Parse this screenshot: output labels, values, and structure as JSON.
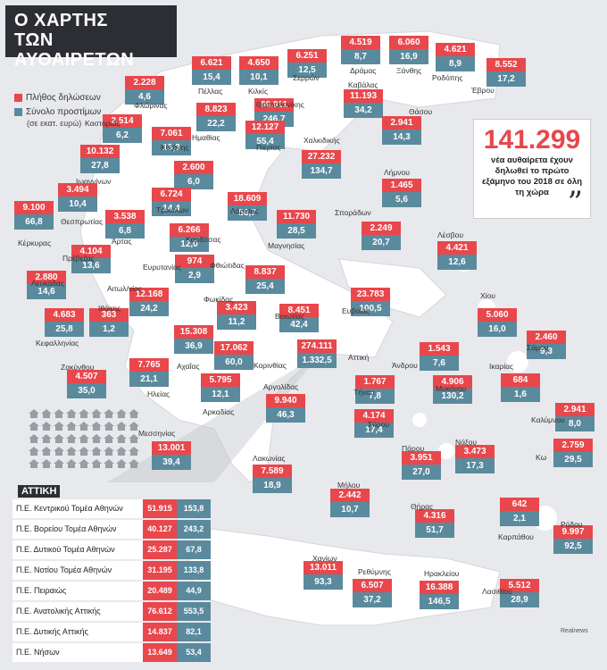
{
  "title": {
    "line1": "Ο ΧΑΡΤΗΣ",
    "line2": "ΤΩΝ ΑΥΘΑΙΡΕΤΩΝ"
  },
  "legend": {
    "red_label": "Πλήθος δηλώσεων",
    "teal_label": "Σύνολο προστίμων",
    "teal_sub": "(σε εκατ. ευρώ)"
  },
  "colors": {
    "red": "#e8474c",
    "teal": "#5a8a9d",
    "dark": "#2c2e33"
  },
  "headline": {
    "number": "141.299",
    "text": "νέα αυθαίρετα έχουν δηλωθεί το πρώτο εξάμηνο του 2018 σε όλη τη χώρα",
    "quote": "”"
  },
  "regions": [
    {
      "name": "Πέλλας",
      "a": "6.621",
      "b": "15,4"
    },
    {
      "name": "Κιλκίς",
      "a": "4.650",
      "b": "10,1"
    },
    {
      "name": "Σερρών",
      "a": "6.251",
      "b": "12,5"
    },
    {
      "name": "Δράμας",
      "a": "4.519",
      "b": "8,7"
    },
    {
      "name": "Ξάνθης",
      "a": "6.060",
      "b": "16,9"
    },
    {
      "name": "Ροδόπης",
      "a": "4.621",
      "b": "8,9"
    },
    {
      "name": "Έβρου",
      "a": "8.552",
      "b": "17,2"
    },
    {
      "name": "Φλώρινας",
      "a": "2.228",
      "b": "4,6"
    },
    {
      "name": "Καβάλας",
      "a": "11.193",
      "b": "34,2"
    },
    {
      "name": "Καστοριάς",
      "a": "2.514",
      "b": "6,2"
    },
    {
      "name": "Ημαθίας",
      "a": "8.823",
      "b": "22,2"
    },
    {
      "name": "Θεσσαλονίκης",
      "a": "66.911",
      "b": "246,7"
    },
    {
      "name": "Θάσου",
      "a": "2.941",
      "b": "14,3"
    },
    {
      "name": "Κοζάνης",
      "a": "7.061",
      "b": "13,3"
    },
    {
      "name": "Πιερίας",
      "a": "12.127",
      "b": "55,4"
    },
    {
      "name": "Χαλκιδικής",
      "a": "27.232",
      "b": "134,7"
    },
    {
      "name": "Ιωαννίνων",
      "a": "10.132",
      "b": "27,8"
    },
    {
      "name": "Γρεβενών",
      "a": "2.600",
      "b": "6,0"
    },
    {
      "name": "Λήμνου",
      "a": "1.465",
      "b": "5,6"
    },
    {
      "name": "Θεσπρωτίας",
      "a": "3.494",
      "b": "10,4"
    },
    {
      "name": "Τρικάλων",
      "a": "6.724",
      "b": "14,4"
    },
    {
      "name": "Λάρισας",
      "a": "18.609",
      "b": "56,7"
    },
    {
      "name": "Κέρκυρας",
      "a": "9.100",
      "b": "66,8"
    },
    {
      "name": "Άρτας",
      "a": "3.538",
      "b": "6,8"
    },
    {
      "name": "Καρδίτσας",
      "a": "6.266",
      "b": "12,0"
    },
    {
      "name": "Μαγνησίας",
      "a": "11.730",
      "b": "28,5"
    },
    {
      "name": "Σποράδων",
      "a": "2.249",
      "b": "20,7"
    },
    {
      "name": "Λέσβου",
      "a": "4.421",
      "b": "12,6"
    },
    {
      "name": "Πρέβεζας",
      "a": "4.104",
      "b": "13,6"
    },
    {
      "name": "Ευρυτανίας",
      "a": "974",
      "b": "2,9"
    },
    {
      "name": "Φθιώτιδας",
      "a": "8.837",
      "b": "25,4"
    },
    {
      "name": "Λευκάδας",
      "a": "2.880",
      "b": "14,6"
    },
    {
      "name": "Αιτωλ/νίας",
      "a": "12.168",
      "b": "24,2"
    },
    {
      "name": "Ευβοίας",
      "a": "23.783",
      "b": "100,5"
    },
    {
      "name": "Κεφαλληνίας",
      "a": "4.683",
      "b": "25,8"
    },
    {
      "name": "Ιθάκης",
      "a": "363",
      "b": "1,2"
    },
    {
      "name": "Φωκίδας",
      "a": "3.423",
      "b": "11,2"
    },
    {
      "name": "Βοιωτίας",
      "a": "8.451",
      "b": "42,4"
    },
    {
      "name": "Χίου",
      "a": "5.060",
      "b": "16,0"
    },
    {
      "name": "Αχαΐας",
      "a": "15.308",
      "b": "36,9"
    },
    {
      "name": "Σάμου",
      "a": "2.460",
      "b": "9,3"
    },
    {
      "name": "Ζακύνθου",
      "a": "4.507",
      "b": "35,0"
    },
    {
      "name": "Κορινθίας",
      "a": "17.062",
      "b": "60,0"
    },
    {
      "name": "Αττική",
      "a": "274.111",
      "b": "1.332,5"
    },
    {
      "name": "Άνδρου",
      "a": "1.543",
      "b": "7,6"
    },
    {
      "name": "Ηλείας",
      "a": "7.765",
      "b": "21,1"
    },
    {
      "name": "Αρκαδίας",
      "a": "5.795",
      "b": "12,1"
    },
    {
      "name": "Τήνου",
      "a": "1.767",
      "b": "7,8"
    },
    {
      "name": "Μυκόνου",
      "a": "4.906",
      "b": "130,2"
    },
    {
      "name": "Ικαρίας",
      "a": "684",
      "b": "1,6"
    },
    {
      "name": "Αργολίδας",
      "a": "9.940",
      "b": "46,3"
    },
    {
      "name": "Σύρου",
      "a": "4.174",
      "b": "17,4"
    },
    {
      "name": "Καλύμνου",
      "a": "2.941",
      "b": "8,0"
    },
    {
      "name": "Μεσσηνίας",
      "a": "13.001",
      "b": "39,4"
    },
    {
      "name": "Πάρου",
      "a": "3.951",
      "b": "27,0"
    },
    {
      "name": "Νάξου",
      "a": "3.473",
      "b": "17,3"
    },
    {
      "name": "Κω",
      "a": "2.759",
      "b": "29,5"
    },
    {
      "name": "Λακωνίας",
      "a": "7.589",
      "b": "18,9"
    },
    {
      "name": "Μήλου",
      "a": "2.442",
      "b": "10,7"
    },
    {
      "name": "Θήρας",
      "a": "4.316",
      "b": "51,7"
    },
    {
      "name": "Καρπάθου",
      "a": "642",
      "b": "2,1"
    },
    {
      "name": "Ρόδου",
      "a": "9.997",
      "b": "92,5"
    },
    {
      "name": "Χανίων",
      "a": "13.011",
      "b": "93,3"
    },
    {
      "name": "Ρεθύμνης",
      "a": "6.507",
      "b": "37,2"
    },
    {
      "name": "Ηρακλείου",
      "a": "16.388",
      "b": "146,5"
    },
    {
      "name": "Λασιθίου",
      "a": "5.512",
      "b": "28,9"
    }
  ],
  "attica": {
    "heading": "ΑΤΤΙΚΗ",
    "rows": [
      {
        "name": "Π.Ε. Κεντρικού Τομέα Αθηνών",
        "a": "51.915",
        "b": "153,8"
      },
      {
        "name": "Π.Ε. Βορείου Τομέα Αθηνών",
        "a": "40.127",
        "b": "243,2"
      },
      {
        "name": "Π.Ε. Δυτικού Τομέα Αθηνών",
        "a": "25.287",
        "b": "67,8"
      },
      {
        "name": "Π.Ε. Νοτίου Τομέα Αθηνών",
        "a": "31.195",
        "b": "133,8"
      },
      {
        "name": "Π.Ε. Πειραιώς",
        "a": "20.489",
        "b": "44,9"
      },
      {
        "name": "Π.Ε. Ανατολικής Αττικής",
        "a": "76.612",
        "b": "553,5"
      },
      {
        "name": "Π.Ε. Δυτικής Αττικής",
        "a": "14.837",
        "b": "82,1"
      },
      {
        "name": "Π.Ε. Νήσων",
        "a": "13.649",
        "b": "53,4"
      }
    ]
  },
  "credit": "Realnews"
}
